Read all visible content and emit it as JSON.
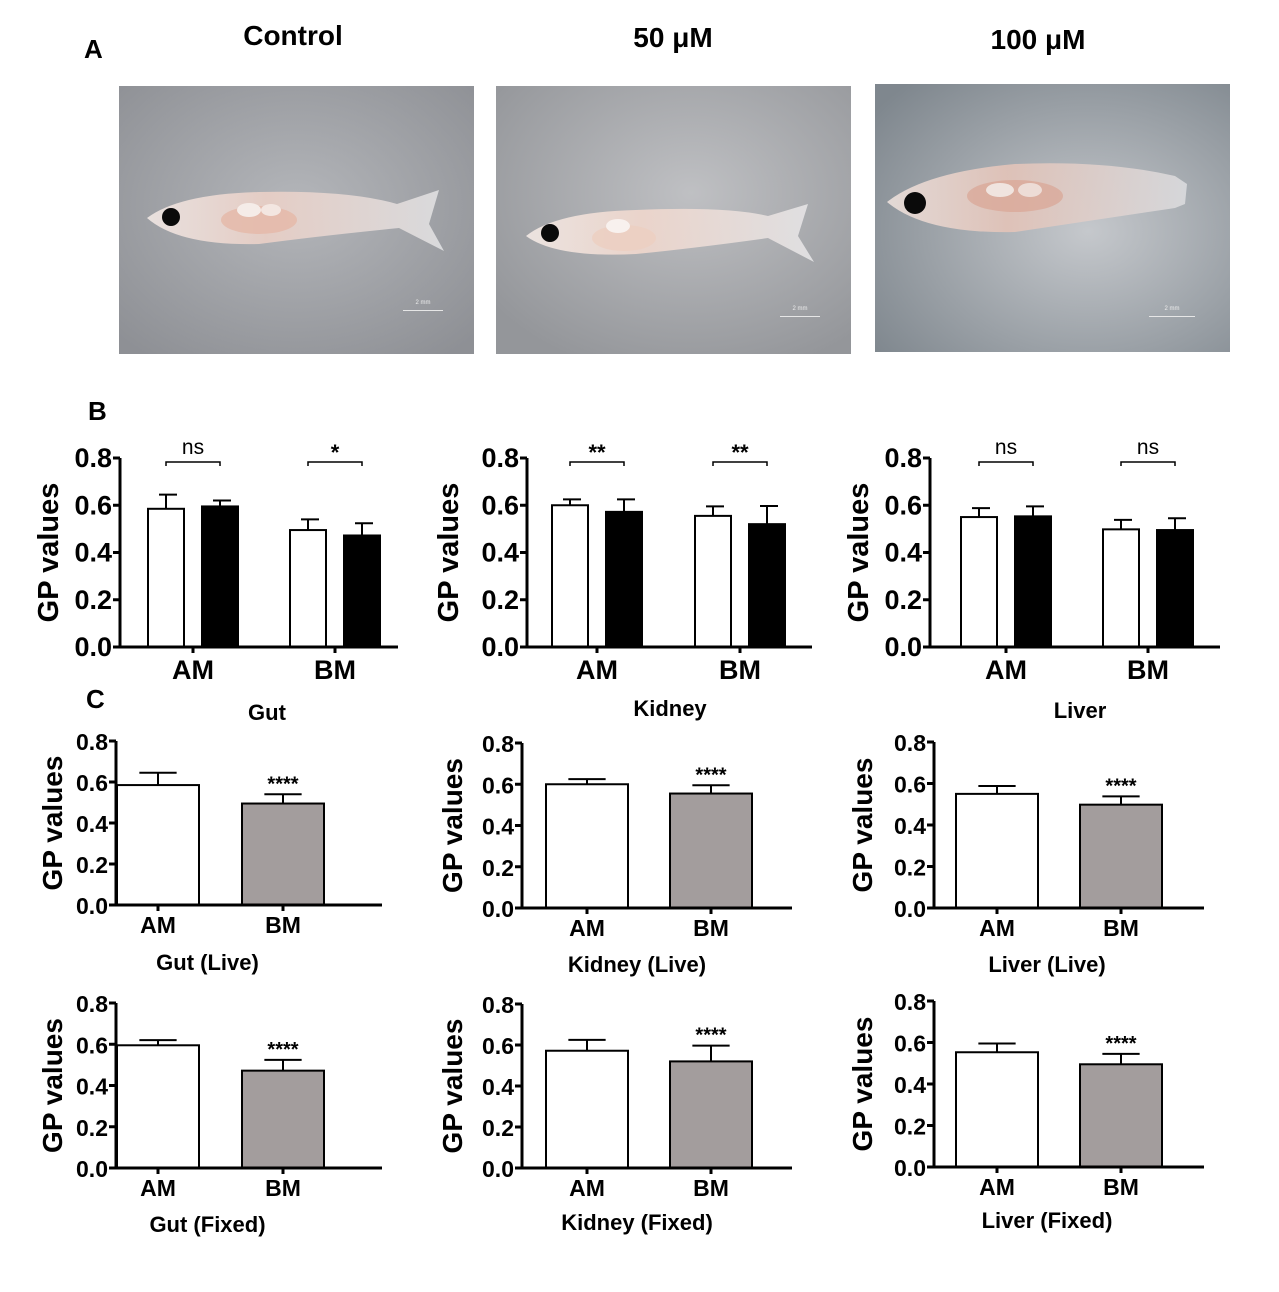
{
  "panel_labels": {
    "a": "A",
    "b": "B",
    "c": "C"
  },
  "photos": [
    {
      "title": "Control",
      "scale_bar": "2 mm",
      "bg": "#9a9ca1"
    },
    {
      "title": "50 μM",
      "scale_bar": "2 mm",
      "bg": "#a2a4a8"
    },
    {
      "title": "100 μM",
      "scale_bar": "2 mm",
      "bg": "#8f969c"
    }
  ],
  "colors": {
    "white_bar": "#ffffff",
    "black_bar": "#000000",
    "grey_bar": "#a39d9d",
    "axis": "#000000"
  },
  "panel_c_titles": [
    "Gut",
    "Kidney",
    "Liver"
  ],
  "chart_data": [
    {
      "id": "B-gut",
      "type": "bar",
      "ylabel": "GP values",
      "ylim": [
        0,
        0.8
      ],
      "yticks": [
        "0.0",
        "0.2",
        "0.4",
        "0.6",
        "0.8"
      ],
      "categories": [
        "AM",
        "BM"
      ],
      "series": [
        {
          "name": "white",
          "fill": "#ffffff",
          "values": [
            0.585,
            0.495
          ],
          "errors": [
            0.06,
            0.045
          ]
        },
        {
          "name": "black",
          "fill": "#000000",
          "values": [
            0.595,
            0.472
          ],
          "errors": [
            0.025,
            0.052
          ]
        }
      ],
      "significance": [
        "ns",
        "*"
      ],
      "xlabel": ""
    },
    {
      "id": "B-kidney",
      "type": "bar",
      "ylabel": "GP values",
      "ylim": [
        0,
        0.8
      ],
      "yticks": [
        "0.0",
        "0.2",
        "0.4",
        "0.6",
        "0.8"
      ],
      "categories": [
        "AM",
        "BM"
      ],
      "series": [
        {
          "name": "white",
          "fill": "#ffffff",
          "values": [
            0.6,
            0.555
          ],
          "errors": [
            0.025,
            0.04
          ]
        },
        {
          "name": "black",
          "fill": "#000000",
          "values": [
            0.572,
            0.52
          ],
          "errors": [
            0.053,
            0.077
          ]
        }
      ],
      "significance": [
        "**",
        "**"
      ],
      "xlabel": "Kidney"
    },
    {
      "id": "B-liver",
      "type": "bar",
      "ylabel": "GP values",
      "ylim": [
        0,
        0.8
      ],
      "yticks": [
        "0.0",
        "0.2",
        "0.4",
        "0.6",
        "0.8"
      ],
      "categories": [
        "AM",
        "BM"
      ],
      "series": [
        {
          "name": "white",
          "fill": "#ffffff",
          "values": [
            0.55,
            0.498
          ],
          "errors": [
            0.038,
            0.04
          ]
        },
        {
          "name": "black",
          "fill": "#000000",
          "values": [
            0.553,
            0.495
          ],
          "errors": [
            0.042,
            0.05
          ]
        }
      ],
      "significance": [
        "ns",
        "ns"
      ],
      "xlabel": "Liver"
    },
    {
      "id": "C-gut-live",
      "type": "bar",
      "ylabel": "GP values",
      "ylim": [
        0,
        0.8
      ],
      "yticks": [
        "0.0",
        "0.2",
        "0.4",
        "0.6",
        "0.8"
      ],
      "categories": [
        "AM",
        "BM"
      ],
      "values": [
        0.585,
        0.495
      ],
      "errors": [
        0.06,
        0.045
      ],
      "fills": [
        "#ffffff",
        "#a39d9d"
      ],
      "significance": [
        "",
        "****"
      ],
      "xlabel": "Gut (Live)"
    },
    {
      "id": "C-kidney-live",
      "type": "bar",
      "ylabel": "GP values",
      "ylim": [
        0,
        0.8
      ],
      "yticks": [
        "0.0",
        "0.2",
        "0.4",
        "0.6",
        "0.8"
      ],
      "categories": [
        "AM",
        "BM"
      ],
      "values": [
        0.6,
        0.555
      ],
      "errors": [
        0.025,
        0.04
      ],
      "fills": [
        "#ffffff",
        "#a39d9d"
      ],
      "significance": [
        "",
        "****"
      ],
      "xlabel": "Kidney (Live)"
    },
    {
      "id": "C-liver-live",
      "type": "bar",
      "ylabel": "GP values",
      "ylim": [
        0,
        0.8
      ],
      "yticks": [
        "0.0",
        "0.2",
        "0.4",
        "0.6",
        "0.8"
      ],
      "categories": [
        "AM",
        "BM"
      ],
      "values": [
        0.55,
        0.498
      ],
      "errors": [
        0.038,
        0.04
      ],
      "fills": [
        "#ffffff",
        "#a39d9d"
      ],
      "significance": [
        "",
        "****"
      ],
      "xlabel": "Liver (Live)"
    },
    {
      "id": "C-gut-fixed",
      "type": "bar",
      "ylabel": "GP values",
      "ylim": [
        0,
        0.8
      ],
      "yticks": [
        "0.0",
        "0.2",
        "0.4",
        "0.6",
        "0.8"
      ],
      "categories": [
        "AM",
        "BM"
      ],
      "values": [
        0.595,
        0.472
      ],
      "errors": [
        0.025,
        0.052
      ],
      "fills": [
        "#ffffff",
        "#a39d9d"
      ],
      "significance": [
        "",
        "****"
      ],
      "xlabel": "Gut (Fixed)"
    },
    {
      "id": "C-kidney-fixed",
      "type": "bar",
      "ylabel": "GP values",
      "ylim": [
        0,
        0.8
      ],
      "yticks": [
        "0.0",
        "0.2",
        "0.4",
        "0.6",
        "0.8"
      ],
      "categories": [
        "AM",
        "BM"
      ],
      "values": [
        0.572,
        0.52
      ],
      "errors": [
        0.053,
        0.077
      ],
      "fills": [
        "#ffffff",
        "#a39d9d"
      ],
      "significance": [
        "",
        "****"
      ],
      "xlabel": "Kidney (Fixed)"
    },
    {
      "id": "C-liver-fixed",
      "type": "bar",
      "ylabel": "GP values",
      "ylim": [
        0,
        0.8
      ],
      "yticks": [
        "0.0",
        "0.2",
        "0.4",
        "0.6",
        "0.8"
      ],
      "categories": [
        "AM",
        "BM"
      ],
      "values": [
        0.553,
        0.495
      ],
      "errors": [
        0.042,
        0.05
      ],
      "fills": [
        "#ffffff",
        "#a39d9d"
      ],
      "significance": [
        "",
        "****"
      ],
      "xlabel": "Liver (Fixed)"
    }
  ]
}
